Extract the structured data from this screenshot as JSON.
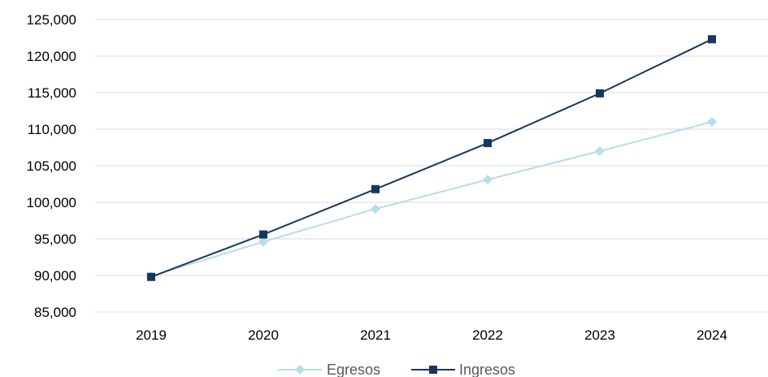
{
  "chart_data": {
    "type": "line",
    "categories": [
      "2019",
      "2020",
      "2021",
      "2022",
      "2023",
      "2024"
    ],
    "series": [
      {
        "name": "Egresos",
        "values": [
          89900,
          94600,
          99100,
          103100,
          107000,
          111000
        ],
        "color": "#b7dde8",
        "marker": "diamond"
      },
      {
        "name": "Ingresos",
        "values": [
          89800,
          95600,
          101800,
          108100,
          114900,
          122300
        ],
        "color": "#17375e",
        "marker": "square"
      }
    ],
    "ylim": [
      85000,
      125000
    ],
    "ytick_step": 5000,
    "y_tick_labels": [
      "85,000",
      "90,000",
      "95,000",
      "100,000",
      "105,000",
      "110,000",
      "115,000",
      "120,000",
      "125,000"
    ],
    "grid": true,
    "legend_position": "bottom-center",
    "gridline_color": "#d9d9d9"
  }
}
